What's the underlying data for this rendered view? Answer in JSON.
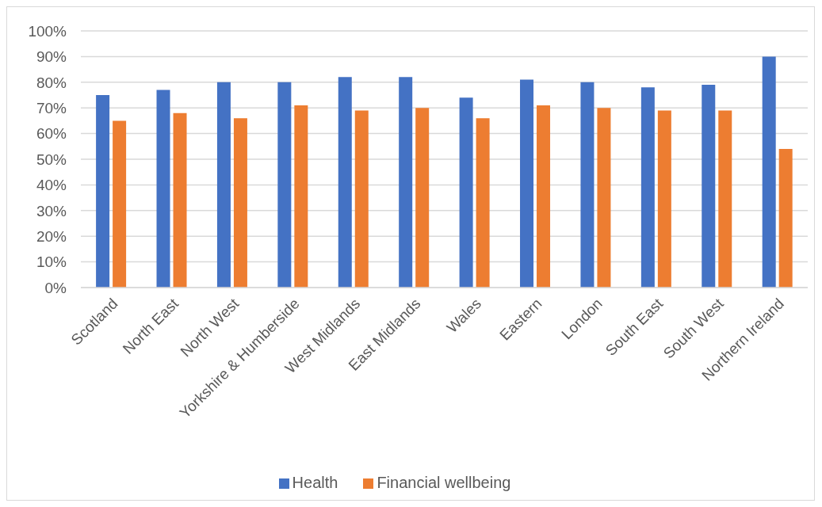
{
  "chart_data": {
    "type": "bar",
    "categories": [
      "Scotland",
      "North East",
      "North West",
      "Yorkshire & Humberside",
      "West Midlands",
      "East Midlands",
      "Wales",
      "Eastern",
      "London",
      "South East",
      "South West",
      "Northern Ireland"
    ],
    "series": [
      {
        "name": "Health",
        "color": "#4472c4",
        "values": [
          75,
          77,
          80,
          80,
          82,
          82,
          74,
          81,
          80,
          78,
          79,
          90
        ]
      },
      {
        "name": "Financial wellbeing",
        "color": "#ed7d31",
        "values": [
          65,
          68,
          66,
          71,
          69,
          70,
          66,
          71,
          70,
          69,
          69,
          54
        ]
      }
    ],
    "ylim": [
      0,
      100
    ],
    "yticks": [
      {
        "value": 0,
        "label": "0%"
      },
      {
        "value": 10,
        "label": "10%"
      },
      {
        "value": 20,
        "label": "20%"
      },
      {
        "value": 30,
        "label": "30%"
      },
      {
        "value": 40,
        "label": "40%"
      },
      {
        "value": 50,
        "label": "50%"
      },
      {
        "value": 60,
        "label": "60%"
      },
      {
        "value": 70,
        "label": "70%"
      },
      {
        "value": 80,
        "label": "80%"
      },
      {
        "value": 90,
        "label": "90%"
      },
      {
        "value": 100,
        "label": "100%"
      }
    ],
    "grid": "y",
    "legend": "bottom"
  }
}
